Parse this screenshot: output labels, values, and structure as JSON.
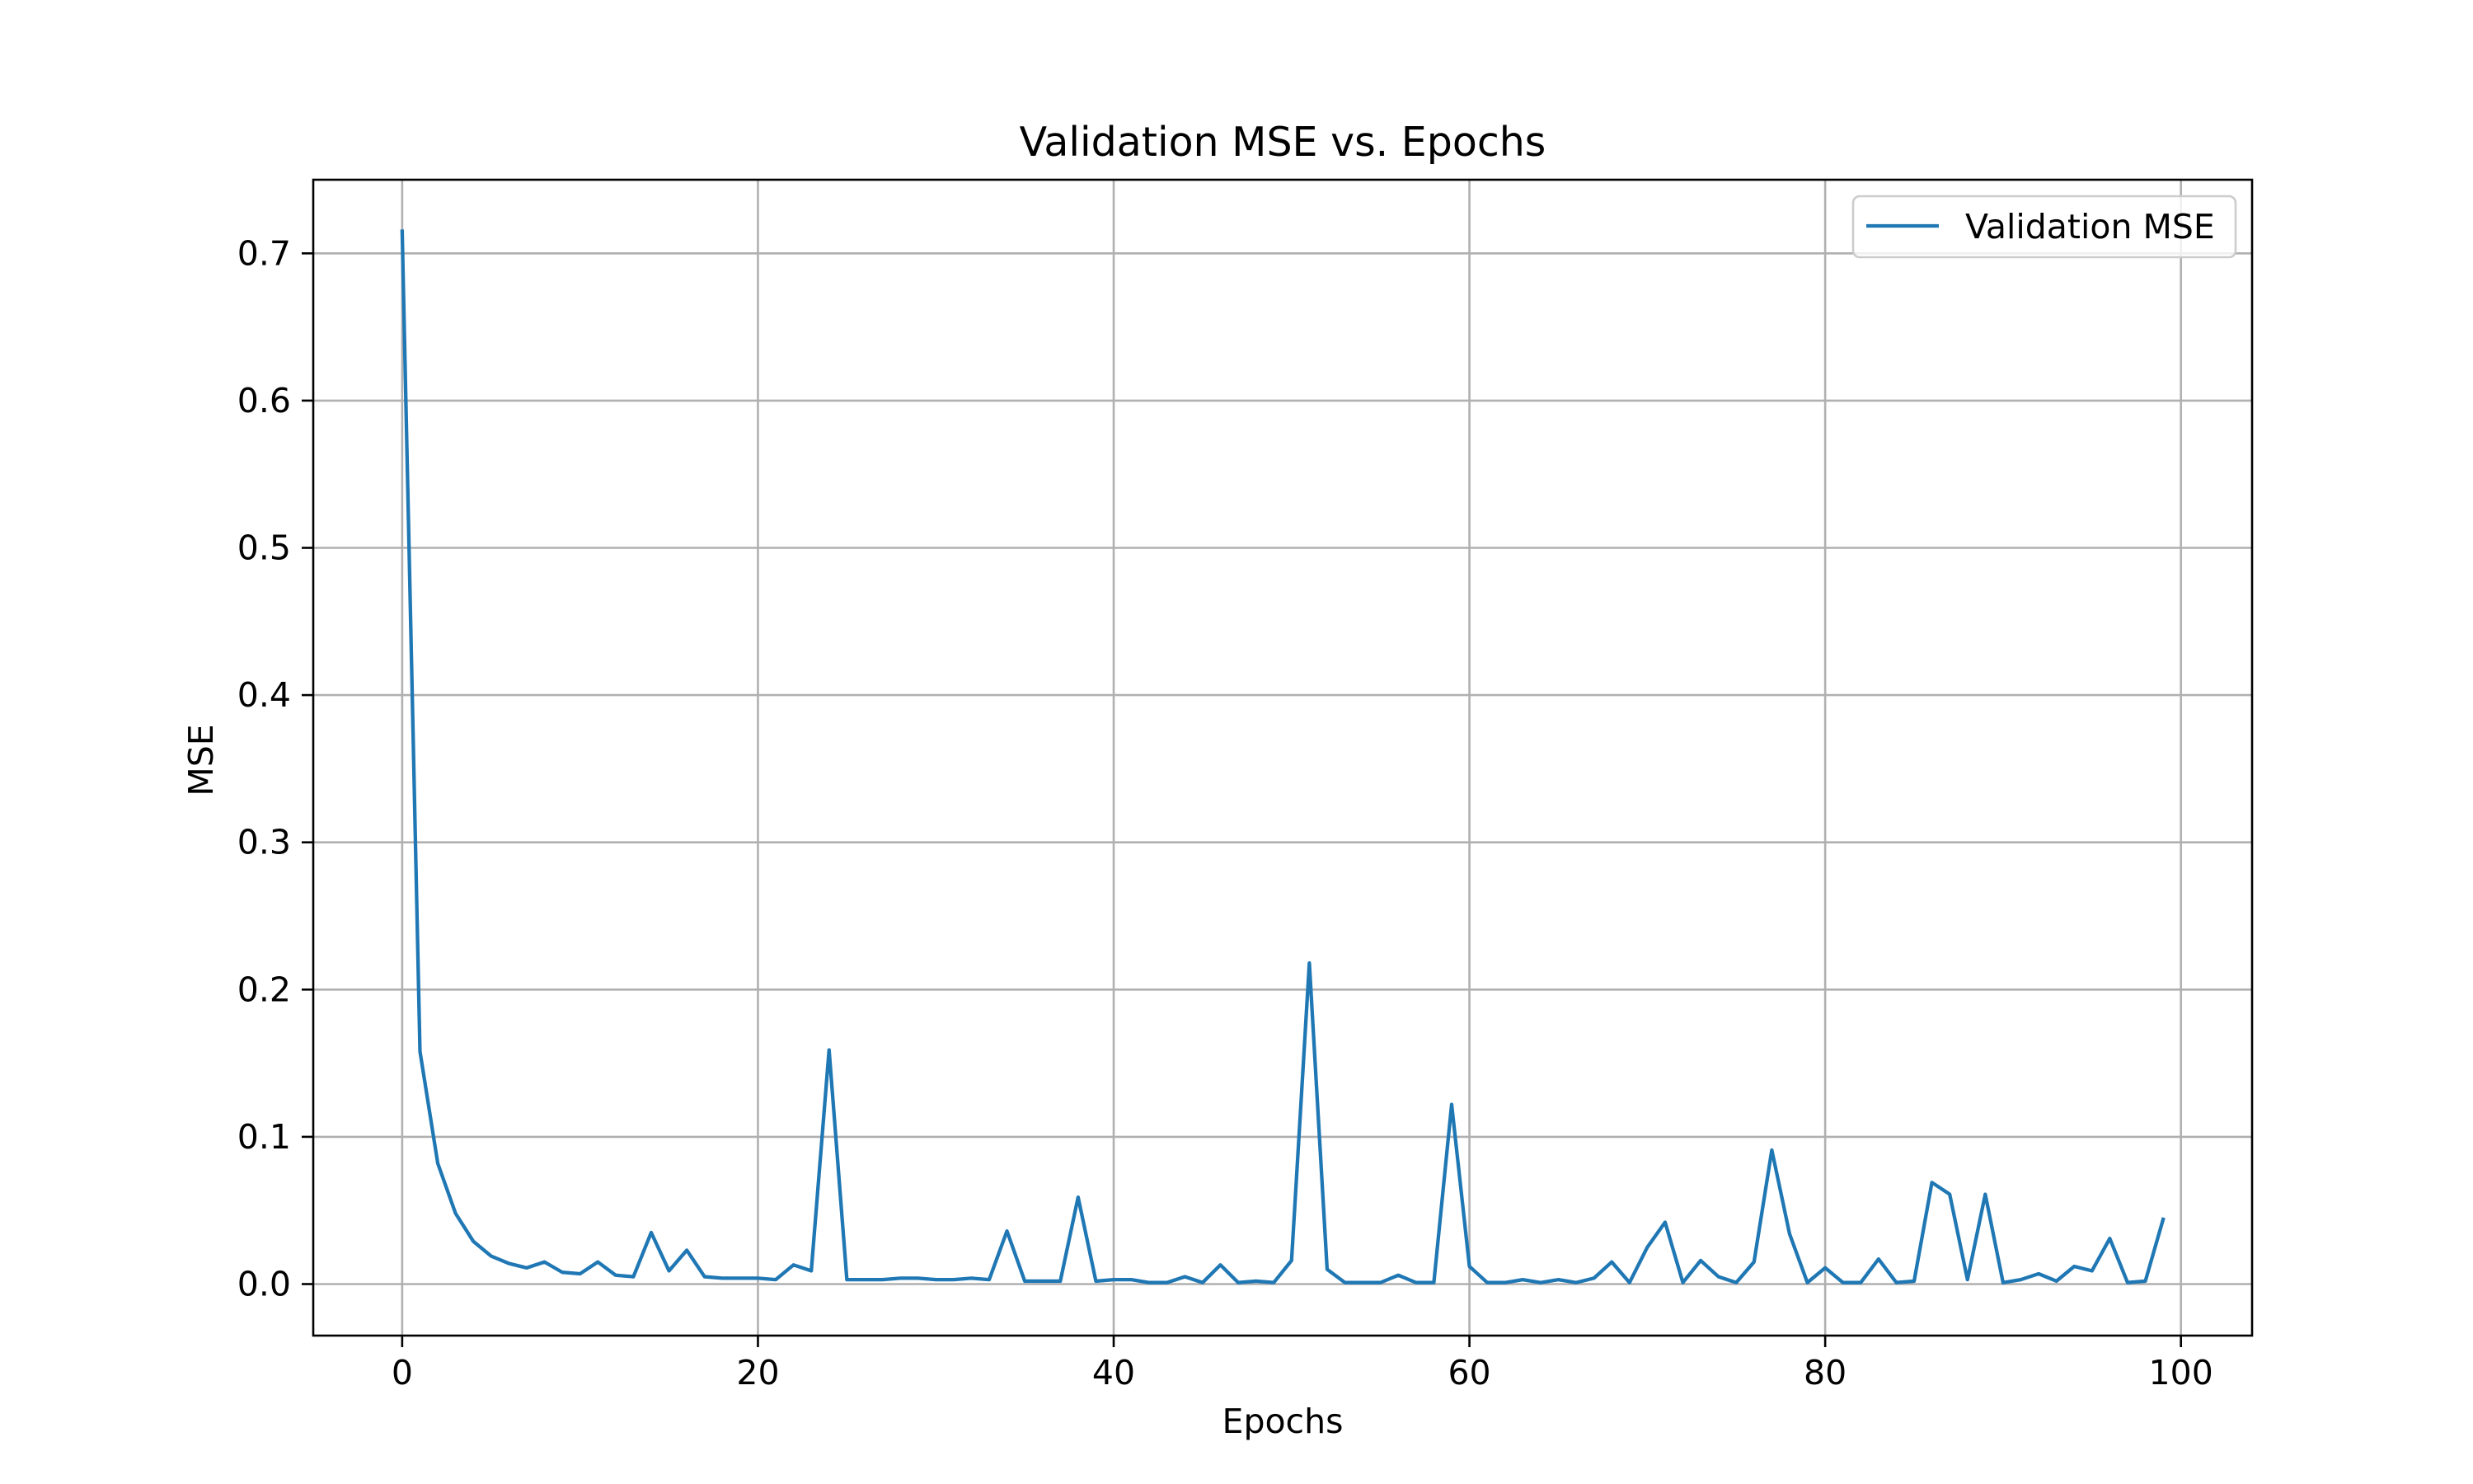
{
  "chart_data": {
    "type": "line",
    "title": "Validation MSE vs. Epochs",
    "xlabel": "Epochs",
    "ylabel": "MSE",
    "xlim": [
      -5,
      104
    ],
    "ylim": [
      -0.035,
      0.75
    ],
    "xticks": [
      0,
      20,
      40,
      60,
      80,
      100
    ],
    "yticks": [
      0.0,
      0.1,
      0.2,
      0.3,
      0.4,
      0.5,
      0.6,
      0.7
    ],
    "ytick_labels": [
      "0.0",
      "0.1",
      "0.2",
      "0.3",
      "0.4",
      "0.5",
      "0.6",
      "0.7"
    ],
    "grid": true,
    "legend_position": "top-right",
    "series": [
      {
        "name": "Validation MSE",
        "color": "#1f77b4",
        "x": [
          0,
          1,
          2,
          3,
          4,
          5,
          6,
          7,
          8,
          9,
          10,
          11,
          12,
          13,
          14,
          15,
          16,
          17,
          18,
          19,
          20,
          21,
          22,
          23,
          24,
          25,
          26,
          27,
          28,
          29,
          30,
          31,
          32,
          33,
          34,
          35,
          36,
          37,
          38,
          39,
          40,
          41,
          42,
          43,
          44,
          45,
          46,
          47,
          48,
          49,
          50,
          51,
          52,
          53,
          54,
          55,
          56,
          57,
          58,
          59,
          60,
          61,
          62,
          63,
          64,
          65,
          66,
          67,
          68,
          69,
          70,
          71,
          72,
          73,
          74,
          75,
          76,
          77,
          78,
          79,
          80,
          81,
          82,
          83,
          84,
          85,
          86,
          87,
          88,
          89,
          90,
          91,
          92,
          93,
          94,
          95,
          96,
          97,
          98,
          99
        ],
        "y": [
          0.715,
          0.158,
          0.082,
          0.048,
          0.029,
          0.019,
          0.014,
          0.011,
          0.015,
          0.008,
          0.007,
          0.015,
          0.006,
          0.005,
          0.035,
          0.009,
          0.023,
          0.005,
          0.004,
          0.004,
          0.004,
          0.003,
          0.013,
          0.009,
          0.159,
          0.003,
          0.003,
          0.003,
          0.004,
          0.004,
          0.003,
          0.003,
          0.004,
          0.003,
          0.036,
          0.002,
          0.002,
          0.002,
          0.059,
          0.002,
          0.003,
          0.003,
          0.001,
          0.001,
          0.005,
          0.001,
          0.013,
          0.001,
          0.002,
          0.001,
          0.016,
          0.218,
          0.01,
          0.001,
          0.001,
          0.001,
          0.006,
          0.001,
          0.001,
          0.122,
          0.012,
          0.001,
          0.001,
          0.003,
          0.001,
          0.003,
          0.001,
          0.004,
          0.015,
          0.001,
          0.025,
          0.042,
          0.001,
          0.016,
          0.005,
          0.001,
          0.015,
          0.091,
          0.034,
          0.001,
          0.011,
          0.001,
          0.001,
          0.017,
          0.001,
          0.002,
          0.069,
          0.061,
          0.003,
          0.061,
          0.001,
          0.003,
          0.007,
          0.002,
          0.012,
          0.009,
          0.031,
          0.001,
          0.002,
          0.044
        ]
      }
    ]
  }
}
